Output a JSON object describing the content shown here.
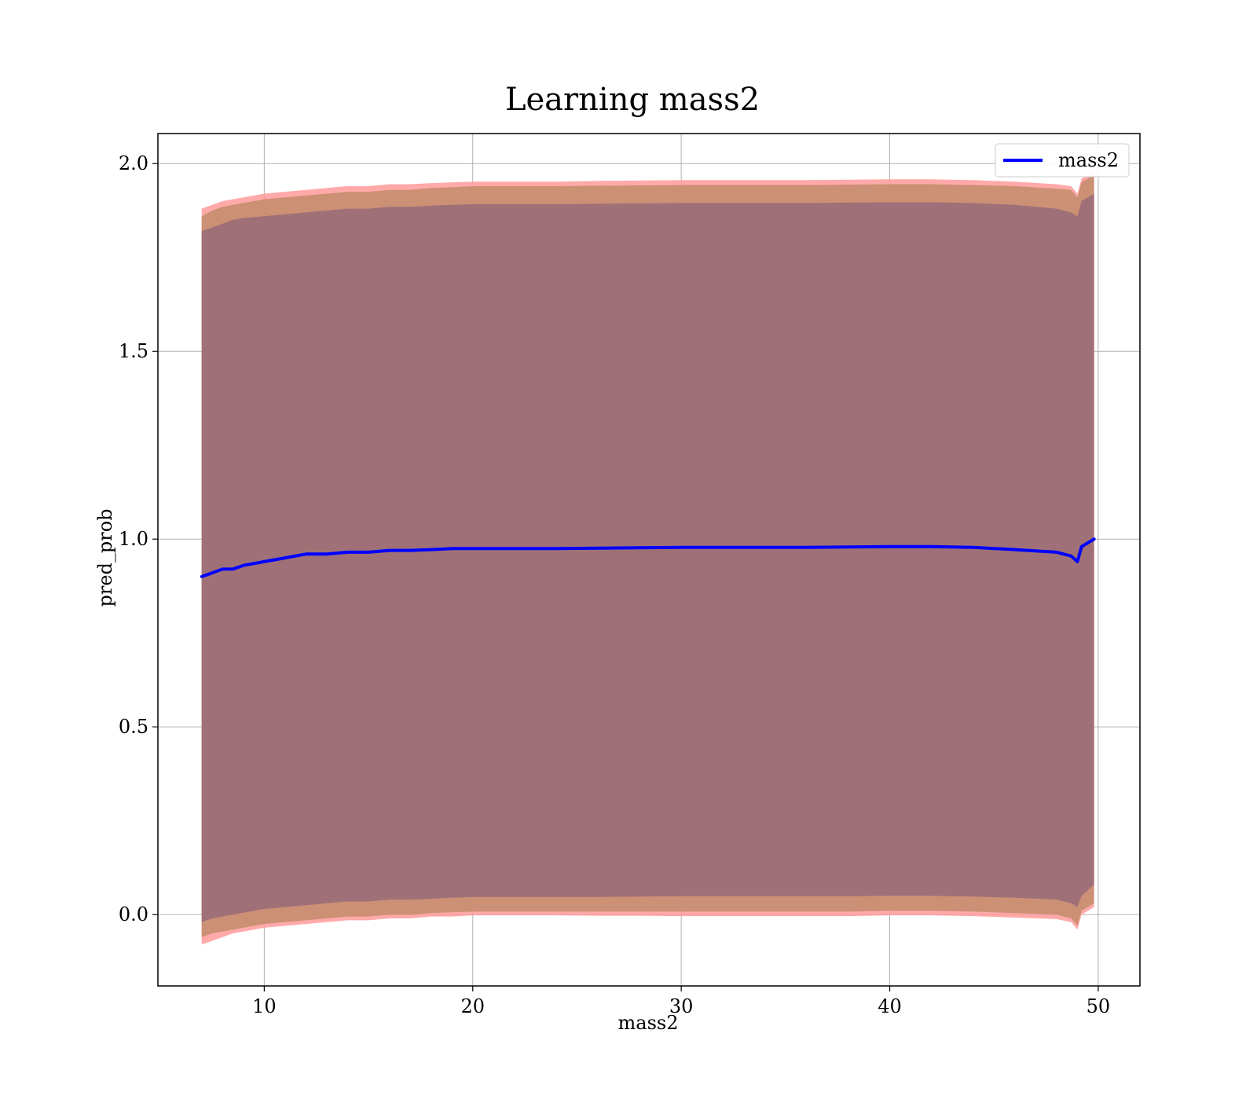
{
  "chart_data": {
    "type": "line",
    "title": "Learning mass2",
    "xlabel": "mass2",
    "ylabel": "pred_prob",
    "xlim": [
      4.9,
      52.0
    ],
    "ylim": [
      -0.19,
      2.08
    ],
    "xticks": [
      10,
      20,
      30,
      40,
      50
    ],
    "xtick_labels": [
      "10",
      "20",
      "30",
      "40",
      "50"
    ],
    "yticks": [
      0.0,
      0.5,
      1.0,
      1.5,
      2.0
    ],
    "ytick_labels": [
      "0.0",
      "0.5",
      "1.0",
      "1.5",
      "2.0"
    ],
    "grid": true,
    "legend": {
      "position": "top-right",
      "entries": [
        "mass2"
      ]
    },
    "colors": {
      "line": "#0000ff",
      "band_outer": "#ff9a9a",
      "band_middle": "#c98e72",
      "band_inner": "#a07078",
      "grid": "#b0b0b0"
    },
    "x": [
      7.0,
      7.5,
      8.0,
      8.5,
      9.0,
      10.0,
      11.0,
      12.0,
      13.0,
      14.0,
      15.0,
      16.0,
      17.0,
      18.0,
      19.0,
      20.0,
      22.0,
      24.0,
      26.0,
      28.0,
      30.0,
      32.0,
      34.0,
      36.0,
      38.0,
      40.0,
      42.0,
      44.0,
      46.0,
      48.0,
      48.7,
      49.0,
      49.2,
      49.8
    ],
    "series": [
      {
        "name": "mass2",
        "values": [
          0.9,
          0.91,
          0.92,
          0.92,
          0.93,
          0.94,
          0.95,
          0.96,
          0.96,
          0.965,
          0.965,
          0.97,
          0.97,
          0.972,
          0.975,
          0.975,
          0.975,
          0.975,
          0.976,
          0.977,
          0.978,
          0.978,
          0.978,
          0.978,
          0.979,
          0.98,
          0.98,
          0.978,
          0.972,
          0.965,
          0.955,
          0.94,
          0.98,
          1.0
        ]
      }
    ],
    "bands": [
      {
        "role": "outer",
        "lower": [
          -0.08,
          -0.07,
          -0.06,
          -0.05,
          -0.045,
          -0.035,
          -0.03,
          -0.025,
          -0.02,
          -0.015,
          -0.015,
          -0.01,
          -0.01,
          -0.005,
          -0.005,
          -0.002,
          -0.002,
          -0.002,
          -0.003,
          -0.003,
          -0.004,
          -0.004,
          -0.004,
          -0.004,
          -0.004,
          -0.002,
          -0.002,
          -0.004,
          -0.008,
          -0.012,
          -0.02,
          -0.04,
          0.0,
          0.02
        ],
        "upper": [
          1.88,
          1.89,
          1.9,
          1.905,
          1.91,
          1.92,
          1.925,
          1.93,
          1.935,
          1.94,
          1.94,
          1.945,
          1.945,
          1.948,
          1.95,
          1.952,
          1.952,
          1.952,
          1.954,
          1.955,
          1.956,
          1.956,
          1.956,
          1.956,
          1.957,
          1.958,
          1.958,
          1.956,
          1.952,
          1.945,
          1.94,
          1.92,
          1.96,
          1.98
        ]
      },
      {
        "role": "middle",
        "lower": [
          -0.06,
          -0.05,
          -0.045,
          -0.04,
          -0.035,
          -0.025,
          -0.02,
          -0.015,
          -0.01,
          -0.005,
          -0.005,
          0.0,
          0.0,
          0.004,
          0.006,
          0.008,
          0.008,
          0.008,
          0.008,
          0.008,
          0.008,
          0.008,
          0.008,
          0.008,
          0.008,
          0.01,
          0.01,
          0.008,
          0.004,
          0.0,
          -0.01,
          -0.03,
          0.01,
          0.03
        ],
        "upper": [
          1.86,
          1.875,
          1.885,
          1.89,
          1.895,
          1.905,
          1.91,
          1.915,
          1.92,
          1.925,
          1.925,
          1.93,
          1.93,
          1.935,
          1.937,
          1.94,
          1.94,
          1.94,
          1.941,
          1.942,
          1.943,
          1.943,
          1.943,
          1.943,
          1.944,
          1.945,
          1.945,
          1.943,
          1.94,
          1.933,
          1.93,
          1.91,
          1.95,
          1.97
        ]
      },
      {
        "role": "inner",
        "lower": [
          -0.02,
          -0.01,
          -0.005,
          0.0,
          0.005,
          0.015,
          0.02,
          0.025,
          0.03,
          0.035,
          0.035,
          0.04,
          0.04,
          0.042,
          0.045,
          0.047,
          0.047,
          0.047,
          0.047,
          0.048,
          0.049,
          0.049,
          0.049,
          0.049,
          0.049,
          0.05,
          0.05,
          0.048,
          0.045,
          0.04,
          0.03,
          0.02,
          0.05,
          0.08
        ],
        "upper": [
          1.82,
          1.83,
          1.84,
          1.85,
          1.855,
          1.86,
          1.865,
          1.87,
          1.875,
          1.88,
          1.88,
          1.885,
          1.885,
          1.888,
          1.89,
          1.892,
          1.892,
          1.892,
          1.893,
          1.894,
          1.895,
          1.895,
          1.895,
          1.895,
          1.896,
          1.897,
          1.897,
          1.895,
          1.89,
          1.88,
          1.87,
          1.86,
          1.9,
          1.92
        ]
      }
    ]
  }
}
